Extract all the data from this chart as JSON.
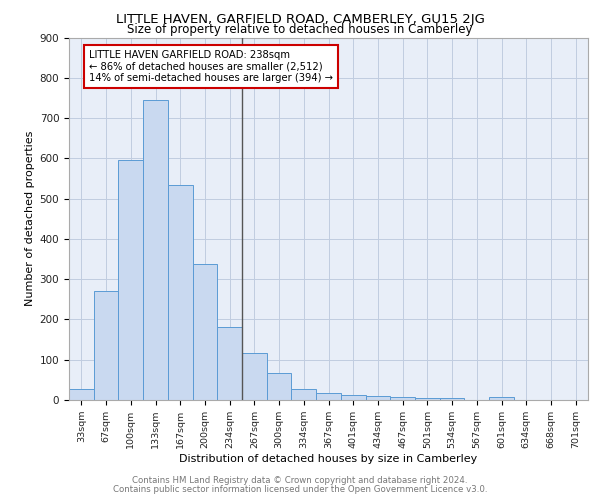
{
  "title": "LITTLE HAVEN, GARFIELD ROAD, CAMBERLEY, GU15 2JG",
  "subtitle": "Size of property relative to detached houses in Camberley",
  "xlabel": "Distribution of detached houses by size in Camberley",
  "ylabel": "Number of detached properties",
  "bar_labels": [
    "33sqm",
    "67sqm",
    "100sqm",
    "133sqm",
    "167sqm",
    "200sqm",
    "234sqm",
    "267sqm",
    "300sqm",
    "334sqm",
    "367sqm",
    "401sqm",
    "434sqm",
    "467sqm",
    "501sqm",
    "534sqm",
    "567sqm",
    "601sqm",
    "634sqm",
    "668sqm",
    "701sqm"
  ],
  "bar_values": [
    27,
    270,
    597,
    744,
    535,
    337,
    182,
    116,
    68,
    27,
    17,
    13,
    10,
    7,
    5,
    5,
    0,
    8,
    0,
    0,
    0
  ],
  "bar_color": "#c9d9f0",
  "bar_edge_color": "#5b9bd5",
  "vline_color": "#555555",
  "annotation_text_line1": "LITTLE HAVEN GARFIELD ROAD: 238sqm",
  "annotation_text_line2": "← 86% of detached houses are smaller (2,512)",
  "annotation_text_line3": "14% of semi-detached houses are larger (394) →",
  "annotation_box_color": "#ffffff",
  "annotation_box_edge": "#cc0000",
  "grid_color": "#c0cce0",
  "background_color": "#e8eef8",
  "ylim": [
    0,
    900
  ],
  "yticks": [
    0,
    100,
    200,
    300,
    400,
    500,
    600,
    700,
    800,
    900
  ],
  "property_bin_index": 6,
  "footer_line1": "Contains HM Land Registry data © Crown copyright and database right 2024.",
  "footer_line2": "Contains public sector information licensed under the Open Government Licence v3.0."
}
